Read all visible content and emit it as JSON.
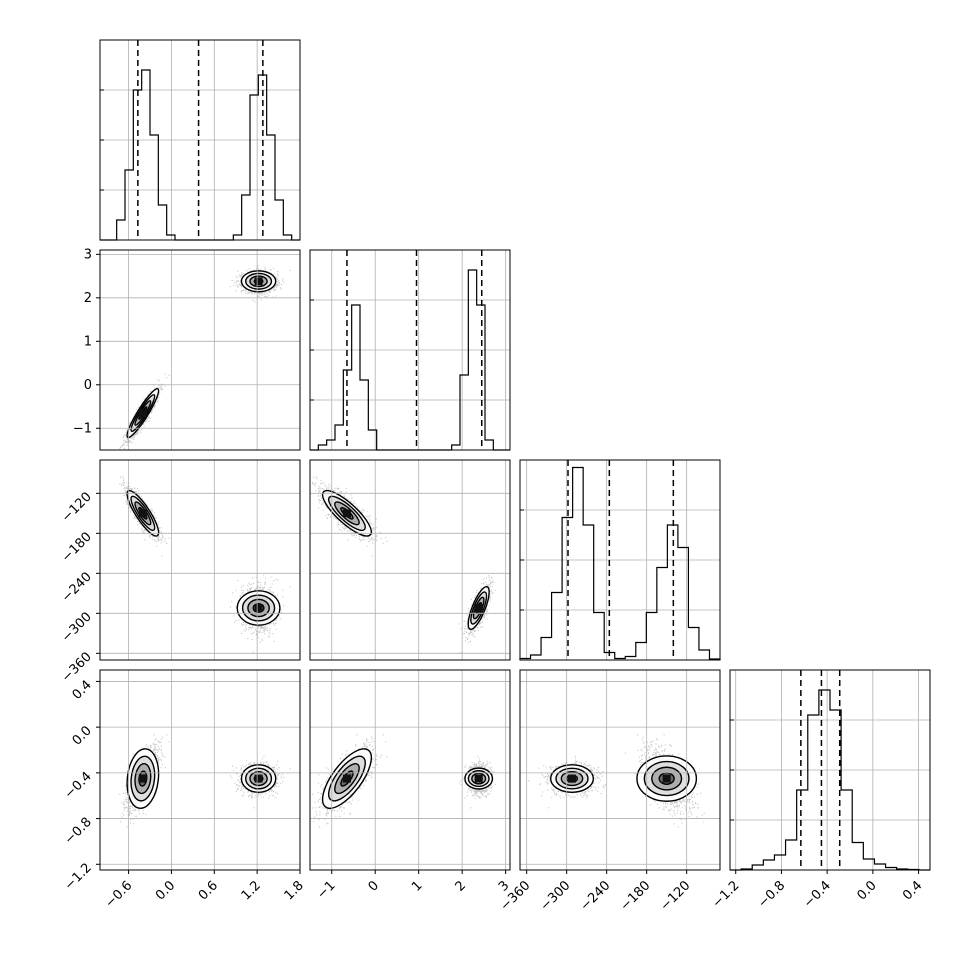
{
  "chart_data": {
    "type": "corner",
    "parameters": [
      {
        "range": [
          -1.0,
          1.8
        ],
        "ticks": [
          -0.6,
          0.0,
          0.6,
          1.2,
          1.8
        ],
        "tick_labels": [
          "−0.6",
          "0.0",
          "0.6",
          "1.2",
          "1.8"
        ],
        "hist_bins": [
          0.0,
          0.0,
          0.4,
          1.4,
          3.0,
          3.4,
          2.1,
          0.7,
          0.1,
          0.0,
          0.0,
          0.0,
          0.0,
          0.0,
          0.0,
          0.0,
          0.1,
          0.9,
          2.9,
          3.3,
          2.1,
          0.8,
          0.1,
          0.0
        ],
        "hist_ymax": 4.0,
        "quantiles": [
          -0.47,
          0.38,
          1.28
        ]
      },
      {
        "range": [
          -1.5,
          3.1
        ],
        "ticks": [
          -1,
          0,
          1,
          2,
          3
        ],
        "tick_labels": [
          "−1",
          "0",
          "1",
          "2",
          "3"
        ],
        "hist_bins": [
          0.0,
          0.1,
          0.2,
          0.5,
          1.6,
          2.9,
          1.4,
          0.4,
          0.0,
          0.0,
          0.0,
          0.0,
          0.0,
          0.0,
          0.0,
          0.0,
          0.0,
          0.1,
          1.5,
          3.6,
          2.9,
          0.2,
          0.0,
          0.0
        ],
        "hist_ymax": 4.0,
        "quantiles": [
          -0.65,
          0.95,
          2.45
        ]
      },
      {
        "range": [
          -370,
          -70
        ],
        "ticks": [
          -360,
          -300,
          -240,
          -180,
          -120
        ],
        "tick_labels": [
          "−360",
          "−300",
          "−240",
          "−180",
          "−120"
        ],
        "hist_bins": [
          0.03,
          0.1,
          0.45,
          1.35,
          2.85,
          3.85,
          2.7,
          0.95,
          0.15,
          0.03,
          0.07,
          0.35,
          0.95,
          1.85,
          2.7,
          2.25,
          0.65,
          0.2,
          0.02
        ],
        "hist_ymax": 4.0,
        "quantiles": [
          -298,
          -236,
          -140
        ]
      },
      {
        "range": [
          -1.25,
          0.5
        ],
        "ticks": [
          -1.2,
          -0.8,
          -0.4,
          0.0,
          0.4
        ],
        "tick_labels": [
          "−1.2",
          "−0.8",
          "−0.4",
          "0.0",
          "0.4"
        ],
        "hist_bins": [
          0.0,
          0.02,
          0.1,
          0.2,
          0.3,
          0.6,
          1.6,
          3.1,
          3.6,
          3.2,
          1.6,
          0.55,
          0.22,
          0.12,
          0.05,
          0.02,
          0.01,
          0.0
        ],
        "hist_ymax": 4.0,
        "quantiles": [
          -0.63,
          -0.45,
          -0.29
        ]
      }
    ],
    "modes": [
      {
        "centers": [
          -0.4,
          -0.65,
          -150,
          -0.45
        ],
        "spreads": [
          0.11,
          0.28,
          17,
          0.13
        ],
        "weight": 0.5
      },
      {
        "centers": [
          1.22,
          2.38,
          -292,
          -0.45
        ],
        "spreads": [
          0.12,
          0.12,
          16,
          0.06
        ],
        "weight": 0.5
      }
    ],
    "correlations": {
      "1,0": 0.92,
      "2,0": -0.85,
      "2,1": -0.82,
      "3,0": 0.0,
      "3,1": 0.0,
      "3,2": 0.0
    },
    "mode_correlations": [
      {
        "1,0": 0.92,
        "2,0": -0.85,
        "2,1": -0.82,
        "3,0": 0.15,
        "3,1": 0.7,
        "3,2": 0.0
      },
      {
        "1,0": 0.0,
        "2,0": 0.0,
        "2,1": 0.75,
        "3,0": 0.0,
        "3,1": 0.0,
        "3,2": 0.0
      }
    ],
    "extra_modes_in_x2": [
      {
        "note": "",
        "center": -140,
        "spread": 18
      }
    ],
    "grid": true
  }
}
